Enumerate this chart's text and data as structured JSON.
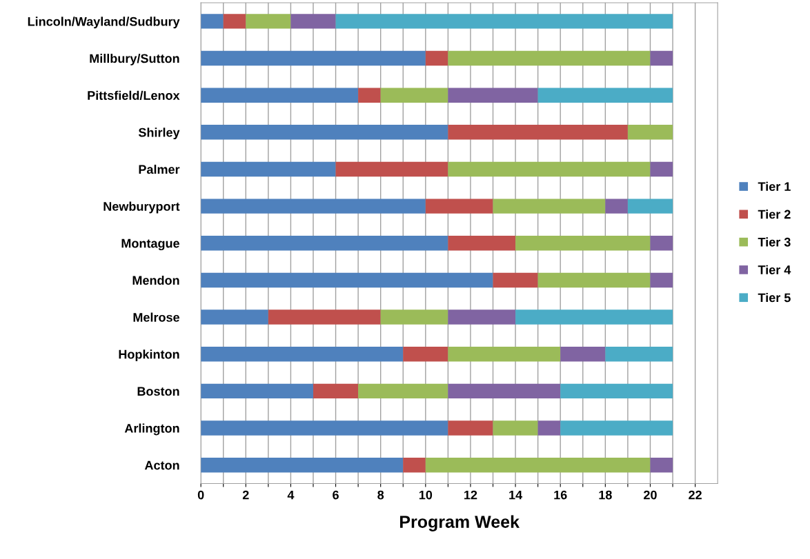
{
  "chart_data": {
    "type": "bar",
    "orientation": "horizontal",
    "stacked": true,
    "xlabel": "Program Week",
    "categories": [
      "Lincoln/Wayland/Sudbury",
      "Millbury/Sutton",
      "Pittsfield/Lenox",
      "Shirley",
      "Palmer",
      "Newburyport",
      "Montague",
      "Mendon",
      "Melrose",
      "Hopkinton",
      "Boston",
      "Arlington",
      "Acton"
    ],
    "series": [
      {
        "name": "Tier 1",
        "color": "#4f81bd",
        "values": [
          1,
          10,
          7,
          11,
          6,
          10,
          11,
          13,
          3,
          9,
          5,
          11,
          9
        ]
      },
      {
        "name": "Tier 2",
        "color": "#c0504d",
        "values": [
          1,
          1,
          1,
          8,
          5,
          3,
          3,
          2,
          5,
          2,
          2,
          2,
          1
        ]
      },
      {
        "name": "Tier 3",
        "color": "#9bbb59",
        "values": [
          2,
          9,
          3,
          2,
          9,
          5,
          6,
          5,
          3,
          5,
          4,
          2,
          10
        ]
      },
      {
        "name": "Tier 4",
        "color": "#8064a2",
        "values": [
          2,
          1,
          4,
          0,
          1,
          1,
          1,
          1,
          3,
          2,
          5,
          1,
          1
        ]
      },
      {
        "name": "Tier 5",
        "color": "#4bacc6",
        "values": [
          15,
          0,
          6,
          0,
          0,
          2,
          0,
          0,
          7,
          3,
          5,
          5,
          0
        ]
      }
    ],
    "xlim": [
      0,
      23
    ],
    "xticks": [
      0,
      {
        "value": 1,
        "label": null
      },
      2,
      {
        "value": 3,
        "label": null
      },
      4,
      {
        "value": 5,
        "label": null
      },
      6,
      {
        "value": 7,
        "label": null
      },
      8,
      {
        "value": 9,
        "label": null
      },
      10,
      {
        "value": 11,
        "label": null
      },
      12,
      {
        "value": 13,
        "label": null
      },
      14,
      {
        "value": 15,
        "label": null
      },
      16,
      {
        "value": 17,
        "label": null
      },
      18,
      {
        "value": 19,
        "label": null
      },
      20,
      {
        "value": 21,
        "label": null
      },
      22
    ],
    "grid": "x",
    "legend": "right"
  }
}
